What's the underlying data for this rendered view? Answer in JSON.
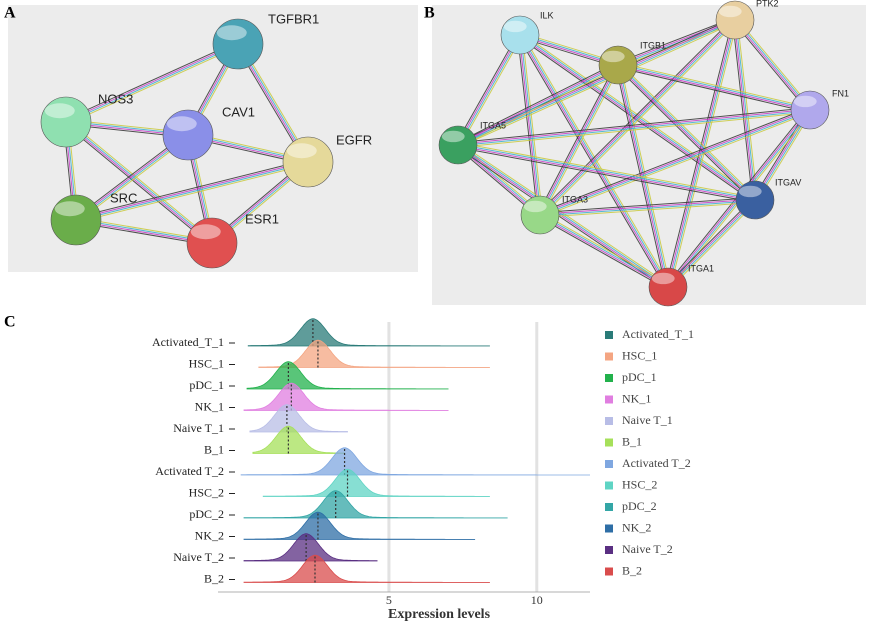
{
  "panel_a": {
    "label": "A",
    "nodes": [
      {
        "label": "TGFBR1",
        "color": "#4aa3b5"
      },
      {
        "label": "NOS3",
        "color": "#8fe0b0"
      },
      {
        "label": "CAV1",
        "color": "#8a8fe8"
      },
      {
        "label": "EGFR",
        "color": "#e5d99a"
      },
      {
        "label": "SRC",
        "color": "#6aad4a"
      },
      {
        "label": "ESR1",
        "color": "#e05050"
      }
    ]
  },
  "panel_b": {
    "label": "B",
    "nodes": [
      {
        "label": "ILK",
        "color": "#a8e0ec"
      },
      {
        "label": "PTK2",
        "color": "#e8cfa0"
      },
      {
        "label": "ITGB1",
        "color": "#a9a84a"
      },
      {
        "label": "FN1",
        "color": "#b0a8ec"
      },
      {
        "label": "ITGA5",
        "color": "#3aa060"
      },
      {
        "label": "ITGAV",
        "color": "#3a60a0"
      },
      {
        "label": "ITGA3",
        "color": "#98d888"
      },
      {
        "label": "ITGA1",
        "color": "#d84848"
      }
    ]
  },
  "chart_data": {
    "type": "ridgeline",
    "panel_label": "C",
    "x_label": "Expression levels",
    "xlim": [
      -0.78,
      11.8
    ],
    "xticks": [
      5,
      10
    ],
    "grid": true,
    "series": [
      {
        "name": "Activated_T_1",
        "color": "#2a7b78",
        "min": 0.24,
        "max": 8.4,
        "peak": 2.43
      },
      {
        "name": "HSC_1",
        "color": "#f4a582",
        "min": 0.6,
        "max": 8.4,
        "peak": 2.6
      },
      {
        "name": "pDC_1",
        "color": "#22b14c",
        "min": 0.2,
        "max": 7.0,
        "peak": 1.6
      },
      {
        "name": "NK_1",
        "color": "#e07ee0",
        "min": 0.1,
        "max": 7.0,
        "peak": 1.7
      },
      {
        "name": "Naive T_1",
        "color": "#b8bde6",
        "min": 0.3,
        "max": 3.6,
        "peak": 1.55
      },
      {
        "name": "B_1",
        "color": "#a6e05a",
        "min": 0.4,
        "max": 3.5,
        "peak": 1.6
      },
      {
        "name": "Activated T_2",
        "color": "#7fa7e0",
        "min": 0.0,
        "max": 11.8,
        "peak": 3.5
      },
      {
        "name": "HSC_2",
        "color": "#5fd4c4",
        "min": 0.75,
        "max": 8.4,
        "peak": 3.6
      },
      {
        "name": "pDC_2",
        "color": "#33a6a6",
        "min": 0.1,
        "max": 9.0,
        "peak": 3.2
      },
      {
        "name": "NK_2",
        "color": "#2e6ea6",
        "min": 0.1,
        "max": 7.9,
        "peak": 2.6
      },
      {
        "name": "Naive T_2",
        "color": "#5a2f82",
        "min": 0.1,
        "max": 4.6,
        "peak": 2.2
      },
      {
        "name": "B_2",
        "color": "#d94c4c",
        "min": 0.1,
        "max": 8.4,
        "peak": 2.5
      }
    ]
  }
}
